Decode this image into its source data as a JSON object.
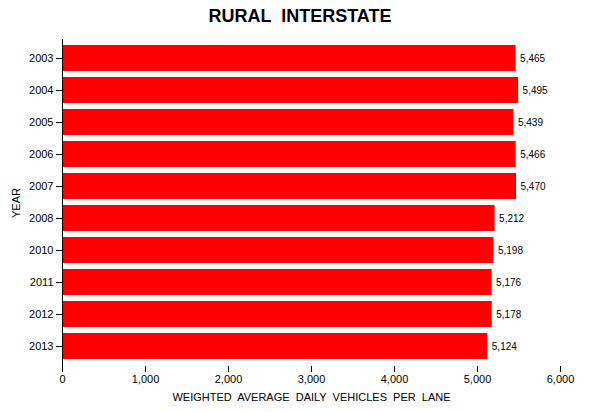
{
  "chart_data": {
    "type": "bar",
    "orientation": "horizontal",
    "title": "RURAL  INTERSTATE",
    "xlabel": "WEIGHTED  AVERAGE  DAILY  VEHICLES  PER  LANE",
    "ylabel": "YEAR",
    "categories": [
      "2003",
      "2004",
      "2005",
      "2006",
      "2007",
      "2008",
      "2010",
      "2011",
      "2012",
      "2013"
    ],
    "values": [
      5465,
      5495,
      5439,
      5466,
      5470,
      5212,
      5198,
      5176,
      5178,
      5124
    ],
    "value_labels": [
      "5,465",
      "5,495",
      "5,439",
      "5,466",
      "5,470",
      "5,212",
      "5,198",
      "5,176",
      "5,178",
      "5,124"
    ],
    "data_labels": true,
    "color": "#ff0000",
    "xlim": [
      0,
      6000
    ],
    "xticks": [
      0,
      {
        "value": 1000,
        "label": "1,000"
      },
      {
        "value": 2000,
        "label": "2,000"
      },
      {
        "value": 3000,
        "label": "3,000"
      },
      {
        "value": 4000,
        "label": "4,000"
      },
      {
        "value": 5000,
        "label": "5,000"
      },
      {
        "value": 6000,
        "label": "6,000"
      }
    ],
    "grid": false
  }
}
